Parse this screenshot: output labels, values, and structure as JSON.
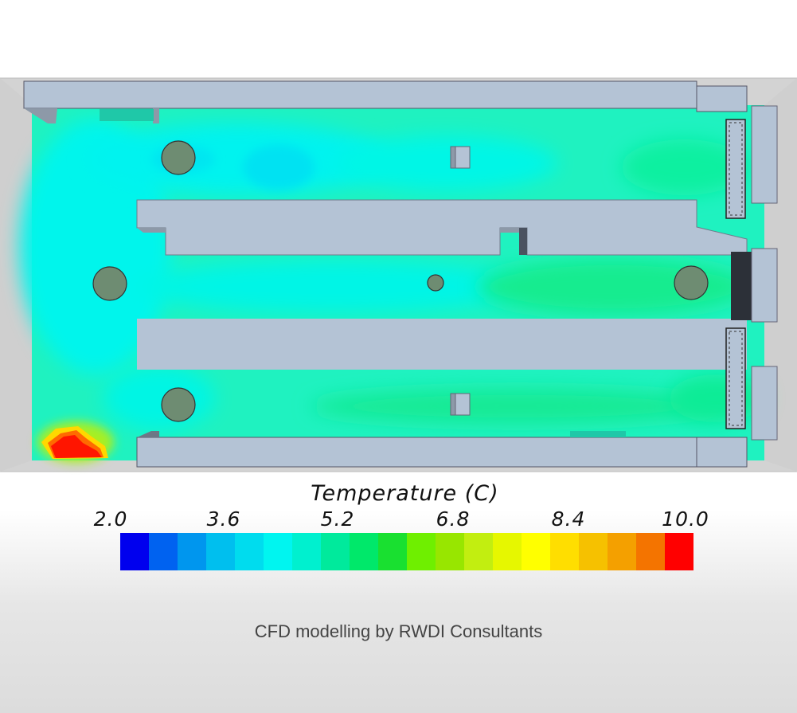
{
  "legend": {
    "title": "Temperature (C)",
    "ticks": [
      "2.0",
      "3.6",
      "5.2",
      "6.8",
      "8.4",
      "10.0"
    ],
    "colors": [
      "#0000ee",
      "#0062f0",
      "#0096ee",
      "#00bfee",
      "#00dcee",
      "#00f5f0",
      "#00f0cf",
      "#00ea9c",
      "#00e86a",
      "#19e030",
      "#6fef00",
      "#98e600",
      "#c2ee10",
      "#e6f700",
      "#ffff00",
      "#ffde00",
      "#f6c100",
      "#f4a000",
      "#f47400",
      "#ff0000"
    ]
  },
  "credit": "CFD modelling by RWDI Consultants",
  "colors": {
    "shelf": "#b4c3d5",
    "wall": "#d4d4d4",
    "floor": "#1ff0c0",
    "hot": "#ff1a00"
  }
}
